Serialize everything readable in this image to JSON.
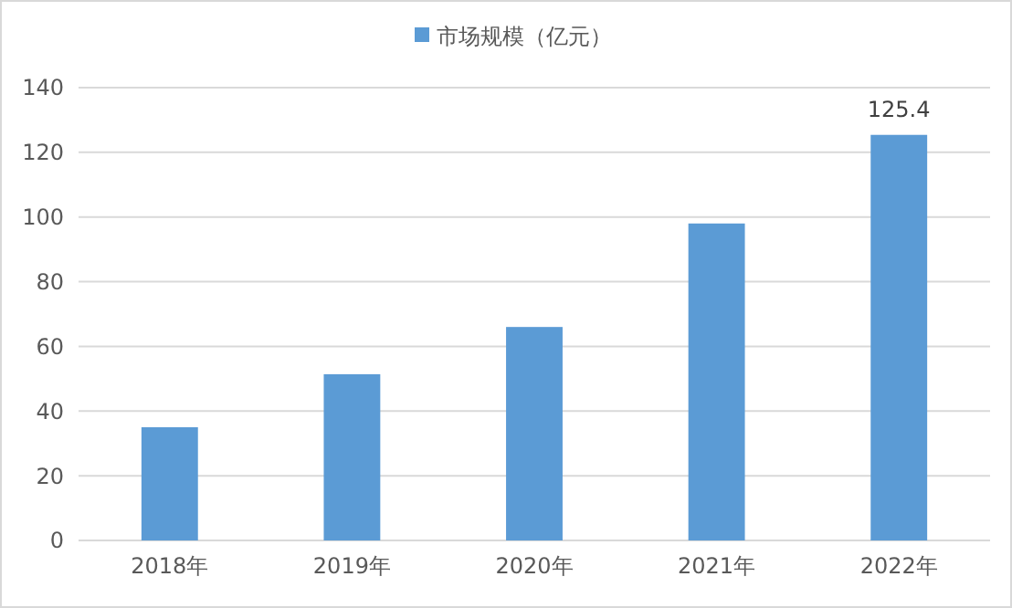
{
  "chart_data": {
    "type": "bar",
    "categories": [
      "2018年",
      "2019年",
      "2020年",
      "2021年",
      "2022年"
    ],
    "series": [
      {
        "name": "市场规模（亿元）",
        "color": "#5b9bd5",
        "values": [
          35,
          51.4,
          66,
          98,
          125.4
        ],
        "value_labels": [
          null,
          null,
          null,
          null,
          "125.4"
        ]
      }
    ],
    "ylim": [
      0,
      140
    ],
    "yticks": [
      0,
      20,
      40,
      60,
      80,
      100,
      120,
      140
    ],
    "grid": "y",
    "legend": "top"
  }
}
